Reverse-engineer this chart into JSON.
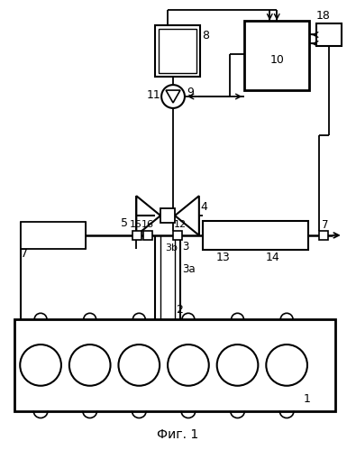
{
  "title": "Фиг. 1",
  "bg_color": "#ffffff",
  "figsize": [
    3.95,
    4.99
  ],
  "dpi": 100
}
